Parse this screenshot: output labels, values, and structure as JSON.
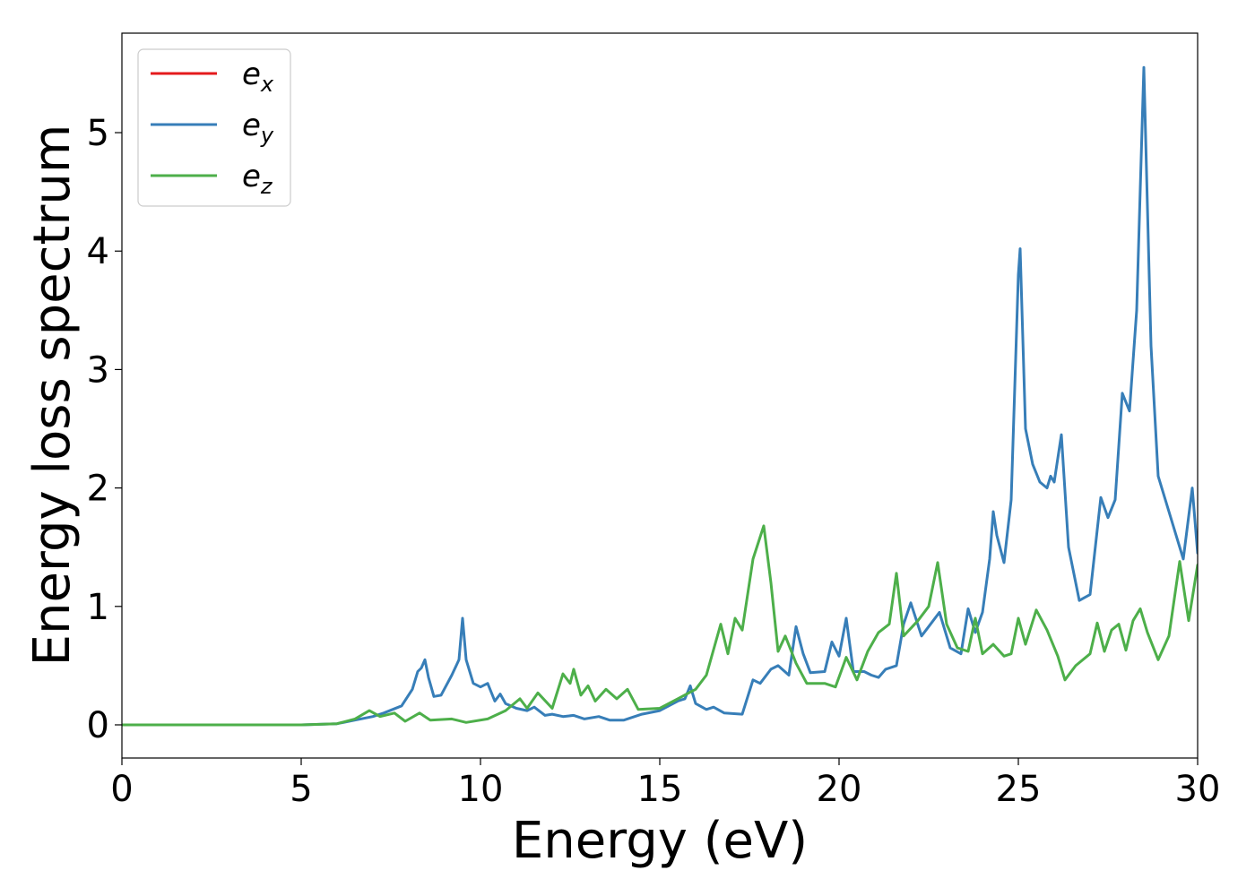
{
  "chart_data": {
    "type": "line",
    "title": "",
    "xlabel": "Energy (eV)",
    "ylabel": "Energy loss spectrum",
    "xlim": [
      0,
      30
    ],
    "ylim": [
      -0.28,
      5.84
    ],
    "xticks": [
      0,
      5,
      10,
      15,
      20,
      25,
      30
    ],
    "xtick_labels": [
      "0",
      "5",
      "10",
      "15",
      "20",
      "25",
      "30"
    ],
    "yticks": [
      0,
      1,
      2,
      3,
      4,
      5
    ],
    "ytick_labels": [
      "0",
      "1",
      "2",
      "3",
      "4",
      "5"
    ],
    "grid": false,
    "legend_position": "top-left",
    "series": [
      {
        "name": "e_x",
        "label_base": "e",
        "label_sub": "x",
        "color": "#e41a1c",
        "points": []
      },
      {
        "name": "e_y",
        "label_base": "e",
        "label_sub": "y",
        "color": "#377eb8",
        "points": [
          [
            0,
            0
          ],
          [
            5,
            0.0
          ],
          [
            6,
            0.01
          ],
          [
            6.5,
            0.04
          ],
          [
            7,
            0.07
          ],
          [
            7.3,
            0.1
          ],
          [
            7.8,
            0.16
          ],
          [
            8.1,
            0.3
          ],
          [
            8.25,
            0.45
          ],
          [
            8.35,
            0.48
          ],
          [
            8.45,
            0.55
          ],
          [
            8.55,
            0.4
          ],
          [
            8.7,
            0.24
          ],
          [
            8.9,
            0.25
          ],
          [
            9.2,
            0.42
          ],
          [
            9.4,
            0.55
          ],
          [
            9.5,
            0.9
          ],
          [
            9.6,
            0.55
          ],
          [
            9.8,
            0.35
          ],
          [
            10.0,
            0.32
          ],
          [
            10.2,
            0.35
          ],
          [
            10.4,
            0.2
          ],
          [
            10.55,
            0.26
          ],
          [
            10.7,
            0.18
          ],
          [
            11.0,
            0.14
          ],
          [
            11.3,
            0.12
          ],
          [
            11.5,
            0.15
          ],
          [
            11.8,
            0.08
          ],
          [
            12.0,
            0.09
          ],
          [
            12.3,
            0.07
          ],
          [
            12.6,
            0.08
          ],
          [
            12.9,
            0.05
          ],
          [
            13.3,
            0.07
          ],
          [
            13.6,
            0.04
          ],
          [
            14.0,
            0.04
          ],
          [
            14.5,
            0.09
          ],
          [
            15.0,
            0.12
          ],
          [
            15.5,
            0.2
          ],
          [
            15.7,
            0.22
          ],
          [
            15.85,
            0.33
          ],
          [
            16.0,
            0.18
          ],
          [
            16.3,
            0.13
          ],
          [
            16.5,
            0.15
          ],
          [
            16.8,
            0.1
          ],
          [
            17.3,
            0.09
          ],
          [
            17.6,
            0.38
          ],
          [
            17.8,
            0.35
          ],
          [
            18.1,
            0.47
          ],
          [
            18.3,
            0.5
          ],
          [
            18.6,
            0.42
          ],
          [
            18.8,
            0.83
          ],
          [
            19.0,
            0.6
          ],
          [
            19.2,
            0.44
          ],
          [
            19.6,
            0.45
          ],
          [
            19.8,
            0.7
          ],
          [
            20.0,
            0.58
          ],
          [
            20.2,
            0.9
          ],
          [
            20.4,
            0.45
          ],
          [
            20.7,
            0.45
          ],
          [
            20.9,
            0.42
          ],
          [
            21.1,
            0.4
          ],
          [
            21.3,
            0.47
          ],
          [
            21.6,
            0.5
          ],
          [
            21.8,
            0.85
          ],
          [
            22.0,
            1.03
          ],
          [
            22.3,
            0.75
          ],
          [
            22.5,
            0.83
          ],
          [
            22.8,
            0.95
          ],
          [
            23.1,
            0.65
          ],
          [
            23.4,
            0.6
          ],
          [
            23.6,
            0.98
          ],
          [
            23.8,
            0.78
          ],
          [
            24.0,
            0.95
          ],
          [
            24.2,
            1.4
          ],
          [
            24.3,
            1.8
          ],
          [
            24.4,
            1.6
          ],
          [
            24.6,
            1.37
          ],
          [
            24.8,
            1.9
          ],
          [
            25.0,
            3.8
          ],
          [
            25.05,
            4.02
          ],
          [
            25.2,
            2.5
          ],
          [
            25.4,
            2.2
          ],
          [
            25.6,
            2.05
          ],
          [
            25.8,
            2.0
          ],
          [
            25.9,
            2.1
          ],
          [
            26.0,
            2.05
          ],
          [
            26.2,
            2.45
          ],
          [
            26.4,
            1.5
          ],
          [
            26.7,
            1.05
          ],
          [
            27.0,
            1.1
          ],
          [
            27.3,
            1.92
          ],
          [
            27.5,
            1.75
          ],
          [
            27.7,
            1.9
          ],
          [
            27.9,
            2.8
          ],
          [
            28.1,
            2.65
          ],
          [
            28.3,
            3.5
          ],
          [
            28.5,
            5.55
          ],
          [
            28.7,
            3.2
          ],
          [
            28.9,
            2.1
          ],
          [
            29.2,
            1.8
          ],
          [
            29.6,
            1.4
          ],
          [
            29.85,
            2.0
          ],
          [
            30.0,
            1.45
          ]
        ]
      },
      {
        "name": "e_z",
        "label_base": "e",
        "label_sub": "z",
        "color": "#4daf4a",
        "points": [
          [
            0,
            0
          ],
          [
            5,
            0.0
          ],
          [
            6,
            0.01
          ],
          [
            6.5,
            0.05
          ],
          [
            6.9,
            0.12
          ],
          [
            7.2,
            0.07
          ],
          [
            7.6,
            0.1
          ],
          [
            7.9,
            0.03
          ],
          [
            8.3,
            0.1
          ],
          [
            8.6,
            0.04
          ],
          [
            9.2,
            0.05
          ],
          [
            9.6,
            0.02
          ],
          [
            10.2,
            0.05
          ],
          [
            10.7,
            0.12
          ],
          [
            11.1,
            0.22
          ],
          [
            11.3,
            0.14
          ],
          [
            11.6,
            0.27
          ],
          [
            12.0,
            0.14
          ],
          [
            12.3,
            0.43
          ],
          [
            12.5,
            0.35
          ],
          [
            12.6,
            0.47
          ],
          [
            12.8,
            0.25
          ],
          [
            13.0,
            0.33
          ],
          [
            13.2,
            0.2
          ],
          [
            13.5,
            0.3
          ],
          [
            13.8,
            0.22
          ],
          [
            14.1,
            0.3
          ],
          [
            14.4,
            0.13
          ],
          [
            15.0,
            0.14
          ],
          [
            15.5,
            0.22
          ],
          [
            16.0,
            0.3
          ],
          [
            16.3,
            0.42
          ],
          [
            16.7,
            0.85
          ],
          [
            16.9,
            0.6
          ],
          [
            17.1,
            0.9
          ],
          [
            17.3,
            0.8
          ],
          [
            17.6,
            1.4
          ],
          [
            17.9,
            1.68
          ],
          [
            18.1,
            1.2
          ],
          [
            18.3,
            0.62
          ],
          [
            18.5,
            0.75
          ],
          [
            18.8,
            0.52
          ],
          [
            19.1,
            0.35
          ],
          [
            19.6,
            0.35
          ],
          [
            19.9,
            0.32
          ],
          [
            20.2,
            0.57
          ],
          [
            20.5,
            0.38
          ],
          [
            20.8,
            0.62
          ],
          [
            21.1,
            0.78
          ],
          [
            21.4,
            0.85
          ],
          [
            21.6,
            1.28
          ],
          [
            21.8,
            0.75
          ],
          [
            22.2,
            0.88
          ],
          [
            22.5,
            1.0
          ],
          [
            22.75,
            1.37
          ],
          [
            23.0,
            0.85
          ],
          [
            23.3,
            0.65
          ],
          [
            23.6,
            0.62
          ],
          [
            23.8,
            0.9
          ],
          [
            24.0,
            0.6
          ],
          [
            24.3,
            0.68
          ],
          [
            24.6,
            0.58
          ],
          [
            24.8,
            0.6
          ],
          [
            25.0,
            0.9
          ],
          [
            25.2,
            0.68
          ],
          [
            25.5,
            0.97
          ],
          [
            25.8,
            0.8
          ],
          [
            26.1,
            0.58
          ],
          [
            26.3,
            0.38
          ],
          [
            26.6,
            0.5
          ],
          [
            27.0,
            0.6
          ],
          [
            27.2,
            0.86
          ],
          [
            27.4,
            0.62
          ],
          [
            27.6,
            0.8
          ],
          [
            27.8,
            0.85
          ],
          [
            28.0,
            0.63
          ],
          [
            28.2,
            0.88
          ],
          [
            28.4,
            0.98
          ],
          [
            28.6,
            0.78
          ],
          [
            28.9,
            0.55
          ],
          [
            29.2,
            0.75
          ],
          [
            29.5,
            1.38
          ],
          [
            29.75,
            0.88
          ],
          [
            30.0,
            1.35
          ]
        ]
      }
    ]
  }
}
